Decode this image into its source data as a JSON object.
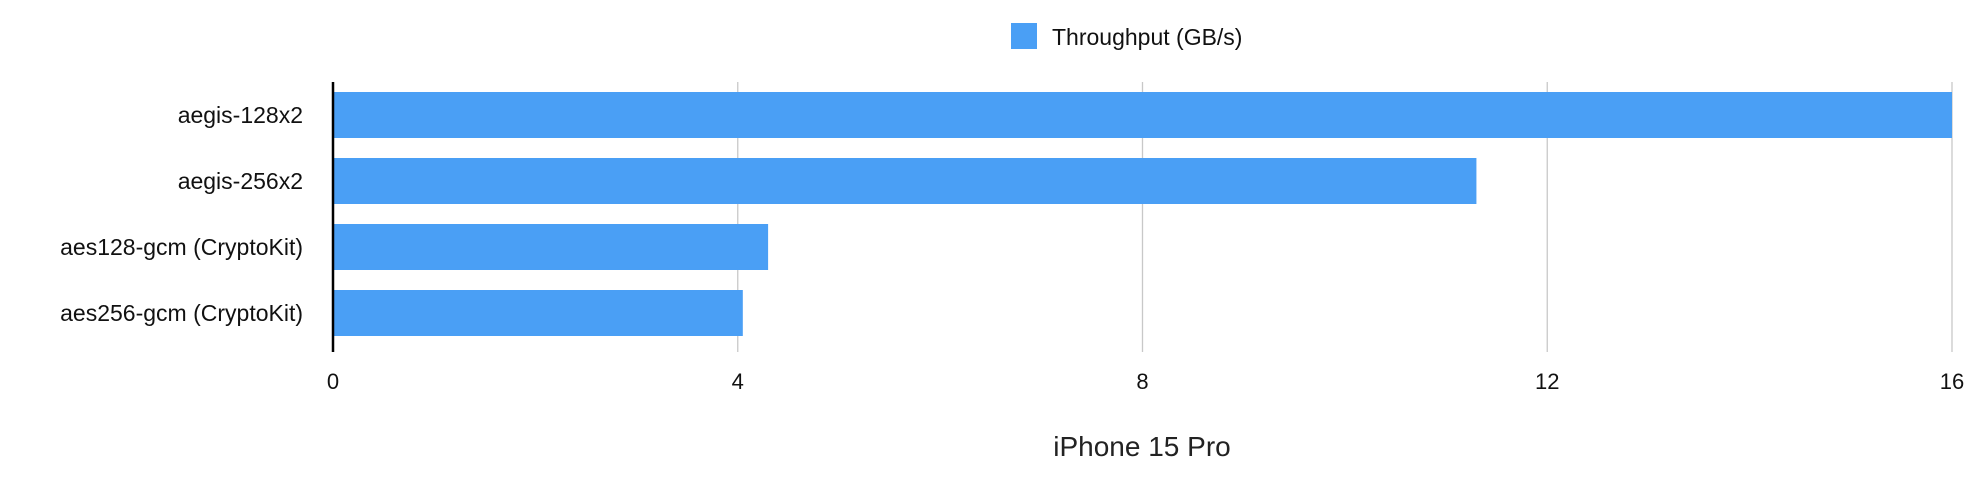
{
  "chart_data": {
    "type": "bar",
    "orientation": "horizontal",
    "categories": [
      "aegis-128x2",
      "aegis-256x2",
      "aes128-gcm (CryptoKit)",
      "aes256-gcm (CryptoKit)"
    ],
    "series": [
      {
        "name": "Throughput (GB/s)",
        "values": [
          16.0,
          11.3,
          4.3,
          4.05
        ],
        "color": "#4a9ff5"
      }
    ],
    "xlabel": "iPhone 15 Pro",
    "ylabel": "",
    "xlim": [
      0,
      16
    ],
    "xticks": [
      0,
      4,
      8,
      12,
      16
    ],
    "grid": true,
    "legend_position": "top-center"
  }
}
